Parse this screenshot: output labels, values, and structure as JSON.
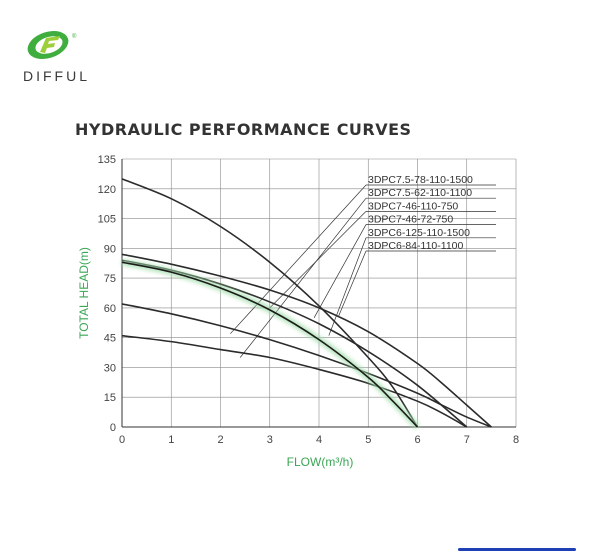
{
  "brand": {
    "name": "DIFFUL",
    "registered_mark": "®",
    "logo_colors": [
      "#3fae3f",
      "#9ccf3a"
    ]
  },
  "chart_data": {
    "type": "line",
    "title": "HYDRAULIC PERFORMANCE CURVES",
    "xlabel": "FLOW(m³/h)",
    "ylabel": "TOTAL HEAD(m)",
    "xlim": [
      0,
      8
    ],
    "ylim": [
      0,
      135
    ],
    "xticks": [
      0,
      1,
      2,
      3,
      4,
      5,
      6,
      7,
      8
    ],
    "yticks": [
      0,
      15,
      30,
      45,
      60,
      75,
      90,
      105,
      120,
      135
    ],
    "grid": true,
    "label_color": "#3aa655",
    "series": [
      {
        "name": "3DPC7.5-78-110-1500",
        "color": "#2b2b2b",
        "x": [
          0,
          1,
          2,
          3,
          4,
          5,
          6,
          6.5,
          7,
          7.5
        ],
        "y": [
          87,
          82,
          76,
          69,
          60,
          48,
          32,
          22,
          11,
          0
        ]
      },
      {
        "name": "3DPC7.5-62-110-1100",
        "color": "#2b2b2b",
        "x": [
          0,
          1,
          2,
          3,
          4,
          5,
          6,
          6.5,
          7,
          7.5
        ],
        "y": [
          62,
          57,
          51,
          44,
          36,
          27,
          17,
          11,
          5,
          0
        ]
      },
      {
        "name": "3DPC7-46-110-750",
        "color": "#2b2b2b",
        "x": [
          0,
          1,
          2,
          3,
          4,
          5,
          6,
          6.5,
          7
        ],
        "y": [
          46,
          43,
          39,
          35,
          29,
          22,
          13,
          7,
          0
        ]
      },
      {
        "name": "3DPC7-46-72-750",
        "color": "#2b2b2b",
        "x": [
          0,
          1,
          2,
          3,
          4,
          5,
          6,
          7
        ],
        "y": [
          84,
          79,
          72,
          63,
          52,
          38,
          21,
          0
        ]
      },
      {
        "name": "3DPC6-125-110-1500",
        "color": "#2b2b2b",
        "x": [
          0,
          1,
          2,
          3,
          4,
          5,
          5.5,
          6
        ],
        "y": [
          125,
          115,
          101,
          83,
          61,
          35,
          20,
          0
        ]
      },
      {
        "name": "3DPC6-84-110-1100",
        "color": "#3aa655",
        "x": [
          0,
          1,
          2,
          3,
          4,
          5,
          5.5,
          6
        ],
        "y": [
          83,
          78,
          70,
          59,
          44,
          25,
          13,
          0
        ]
      }
    ],
    "leader_lines": [
      {
        "label": "3DPC7.5-78-110-1500",
        "target": [
          2.2,
          47
        ]
      },
      {
        "label": "3DPC7.5-62-110-1100",
        "target": [
          2.4,
          35
        ]
      },
      {
        "label": "3DPC7-46-110-750",
        "target": [
          3.0,
          60
        ]
      },
      {
        "label": "3DPC7-46-72-750",
        "target": [
          3.9,
          55
        ]
      },
      {
        "label": "3DPC6-125-110-1500",
        "target": [
          4.2,
          46
        ]
      },
      {
        "label": "3DPC6-84-110-1100",
        "target": [
          4.4,
          56
        ]
      }
    ]
  }
}
